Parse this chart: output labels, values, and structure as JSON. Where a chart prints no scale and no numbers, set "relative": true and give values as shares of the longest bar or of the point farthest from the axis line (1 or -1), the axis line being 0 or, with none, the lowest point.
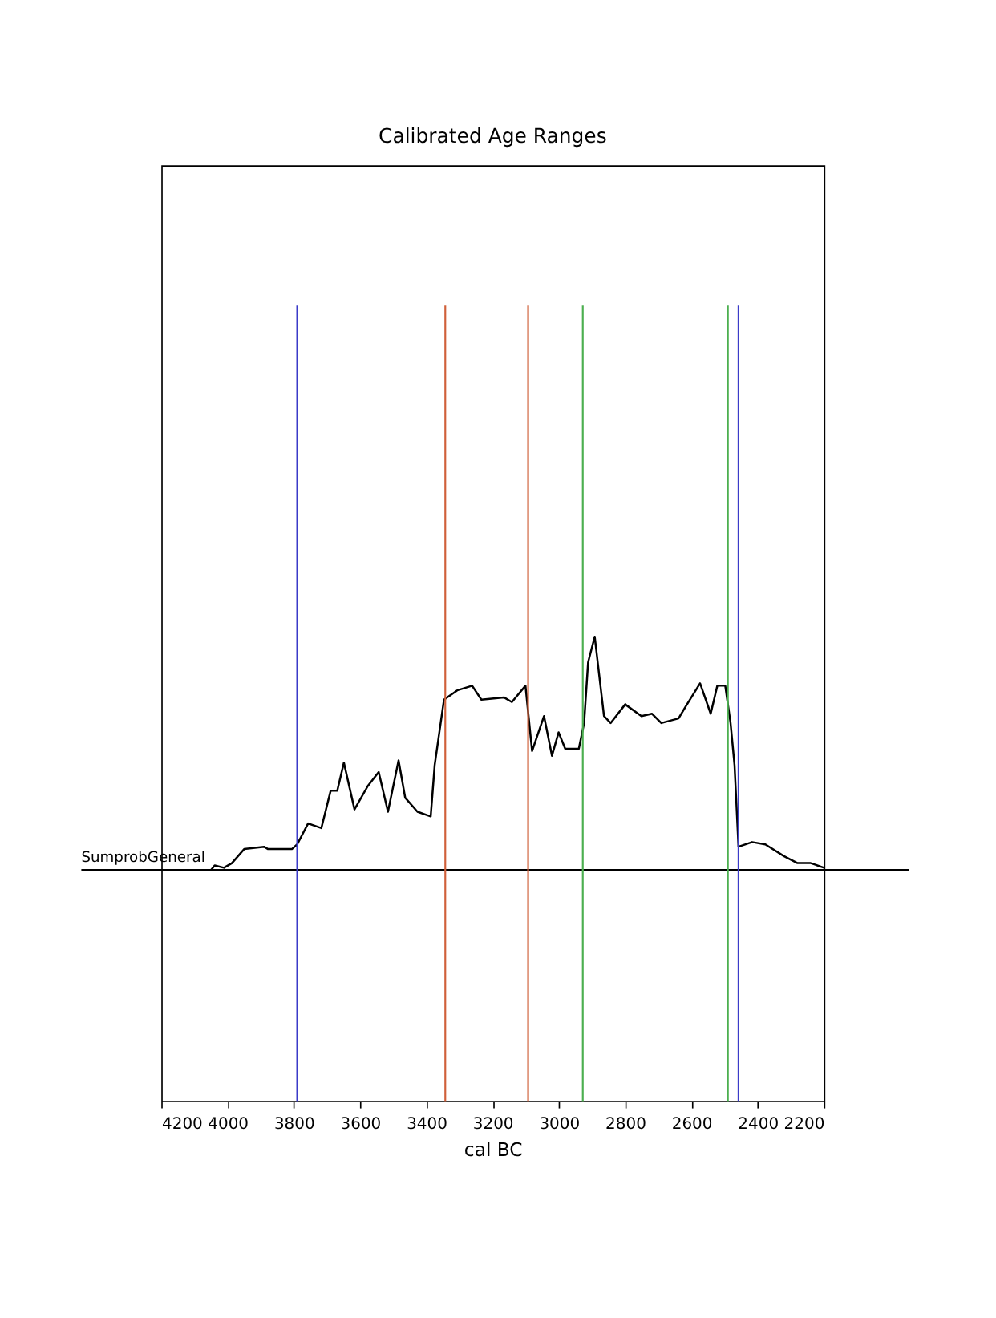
{
  "chart_data": {
    "type": "line",
    "title": "Calibrated Age Ranges",
    "xlabel": "cal BC",
    "relative": true,
    "xlim": [
      4200,
      2200
    ],
    "xticks": [
      4200,
      4000,
      3800,
      3600,
      3400,
      3200,
      3000,
      2800,
      2600,
      2400,
      2200
    ],
    "grid": false,
    "marker": "none",
    "line_style": "solid",
    "series": [
      {
        "name": "SumprobGeneral",
        "color": "#000000",
        "x": [
          4050,
          4039,
          4011,
          3987,
          3950,
          3890,
          3878,
          3806,
          3790,
          3757,
          3717,
          3689,
          3669,
          3649,
          3617,
          3577,
          3544,
          3516,
          3484,
          3464,
          3427,
          3387,
          3375,
          3347,
          3307,
          3262,
          3234,
          3166,
          3142,
          3101,
          3081,
          3045,
          3021,
          3001,
          2981,
          2940,
          2924,
          2912,
          2892,
          2864,
          2844,
          2800,
          2751,
          2719,
          2691,
          2639,
          2618,
          2574,
          2542,
          2522,
          2498,
          2482,
          2470,
          2458,
          2417,
          2377,
          2321,
          2280,
          2240,
          2200
        ],
        "values": [
          0,
          0.02,
          0.01,
          0.03,
          0.09,
          0.1,
          0.09,
          0.09,
          0.11,
          0.2,
          0.18,
          0.34,
          0.34,
          0.46,
          0.26,
          0.36,
          0.42,
          0.25,
          0.47,
          0.31,
          0.25,
          0.23,
          0.45,
          0.73,
          0.77,
          0.79,
          0.73,
          0.74,
          0.72,
          0.79,
          0.51,
          0.66,
          0.49,
          0.59,
          0.52,
          0.52,
          0.63,
          0.89,
          1.0,
          0.66,
          0.63,
          0.71,
          0.66,
          0.67,
          0.63,
          0.65,
          0.7,
          0.8,
          0.67,
          0.79,
          0.79,
          0.63,
          0.45,
          0.1,
          0.12,
          0.11,
          0.06,
          0.03,
          0.03,
          0.01
        ]
      }
    ],
    "ref_lines": [
      {
        "axis": "y",
        "value": 0,
        "color": "#000000"
      },
      {
        "axis": "x",
        "value": 3790,
        "color": "#3b3bc8"
      },
      {
        "axis": "x",
        "value": 3343,
        "color": "#d0603a"
      },
      {
        "axis": "x",
        "value": 3093,
        "color": "#d0603a"
      },
      {
        "axis": "x",
        "value": 2928,
        "color": "#4caf50"
      },
      {
        "axis": "x",
        "value": 2490,
        "color": "#4caf50"
      },
      {
        "axis": "x",
        "value": 2458,
        "color": "#3b3bc8"
      }
    ]
  }
}
